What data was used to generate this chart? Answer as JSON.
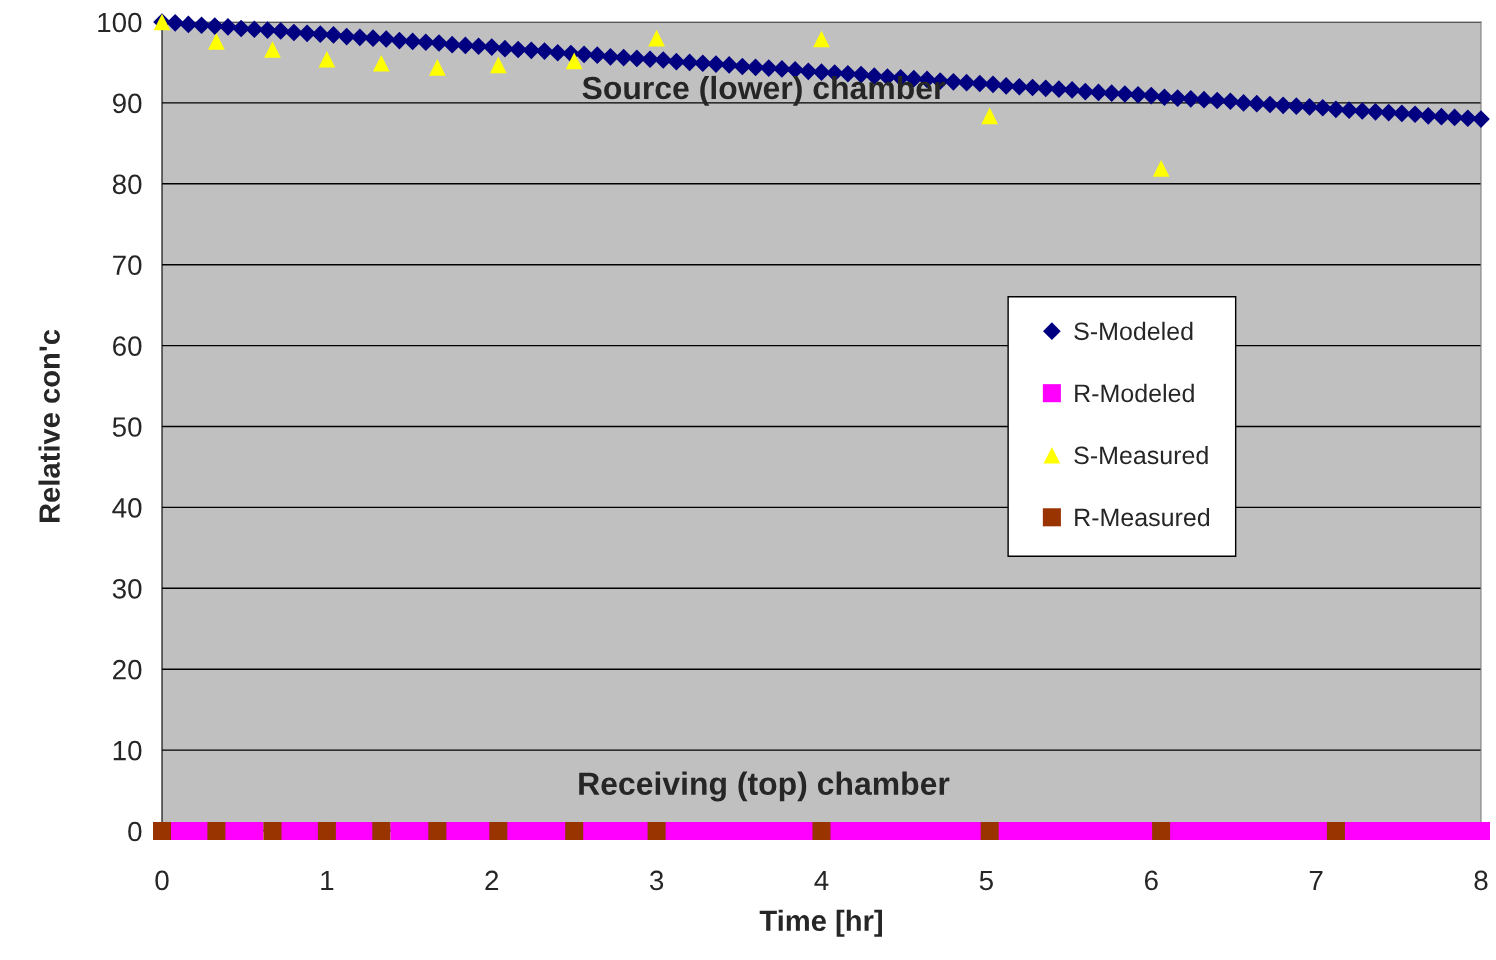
{
  "chart_data": {
    "type": "scatter",
    "xlabel": "Time [hr]",
    "ylabel": "Relative con'c",
    "xlim": [
      0,
      8
    ],
    "xticks": [
      0,
      1,
      2,
      3,
      4,
      5,
      6,
      7,
      8
    ],
    "ylim": [
      0,
      100
    ],
    "yticks": [
      0,
      10,
      20,
      30,
      40,
      50,
      60,
      70,
      80,
      90,
      100
    ],
    "grid": "y",
    "legend": "right",
    "annotations": [
      "Source (lower) chamber",
      "Receiving (top) chamber"
    ],
    "series": [
      {
        "name": "S-Modeled",
        "color": "#000080",
        "marker": "diamond",
        "x": [
          0,
          0.08,
          0.16,
          0.24,
          0.32,
          0.4,
          0.48,
          0.56,
          0.64,
          0.72,
          0.8,
          0.88,
          0.96,
          1.04,
          1.12,
          1.2,
          1.28,
          1.36,
          1.44,
          1.52,
          1.6,
          1.68,
          1.76,
          1.84,
          1.92,
          2.0,
          2.08,
          2.16,
          2.24,
          2.32,
          2.4,
          2.48,
          2.56,
          2.64,
          2.72,
          2.8,
          2.88,
          2.96,
          3.04,
          3.12,
          3.2,
          3.28,
          3.36,
          3.44,
          3.52,
          3.6,
          3.68,
          3.76,
          3.84,
          3.92,
          4.0,
          4.08,
          4.16,
          4.24,
          4.32,
          4.4,
          4.48,
          4.56,
          4.64,
          4.72,
          4.8,
          4.88,
          4.96,
          5.04,
          5.12,
          5.2,
          5.28,
          5.36,
          5.44,
          5.52,
          5.6,
          5.68,
          5.76,
          5.84,
          5.92,
          6.0,
          6.08,
          6.16,
          6.24,
          6.32,
          6.4,
          6.48,
          6.56,
          6.64,
          6.72,
          6.8,
          6.88,
          6.96,
          7.04,
          7.12,
          7.2,
          7.28,
          7.36,
          7.44,
          7.52,
          7.6,
          7.68,
          7.76,
          7.84,
          7.92,
          8.0
        ],
        "values": [
          100,
          99.9,
          99.7,
          99.6,
          99.5,
          99.4,
          99.2,
          99.1,
          99.0,
          98.9,
          98.7,
          98.6,
          98.5,
          98.4,
          98.2,
          98.1,
          98.0,
          97.9,
          97.7,
          97.6,
          97.5,
          97.4,
          97.2,
          97.1,
          97.0,
          96.9,
          96.7,
          96.6,
          96.5,
          96.4,
          96.2,
          96.1,
          96.0,
          95.9,
          95.7,
          95.6,
          95.5,
          95.4,
          95.3,
          95.1,
          95.0,
          94.9,
          94.8,
          94.7,
          94.5,
          94.4,
          94.3,
          94.2,
          94.1,
          93.9,
          93.8,
          93.7,
          93.6,
          93.5,
          93.3,
          93.2,
          93.1,
          93.0,
          92.9,
          92.7,
          92.6,
          92.5,
          92.4,
          92.3,
          92.1,
          92.0,
          91.9,
          91.8,
          91.7,
          91.6,
          91.4,
          91.3,
          91.2,
          91.1,
          91.0,
          90.9,
          90.7,
          90.6,
          90.5,
          90.4,
          90.3,
          90.2,
          90.0,
          89.9,
          89.8,
          89.7,
          89.6,
          89.5,
          89.4,
          89.2,
          89.1,
          89.0,
          88.9,
          88.8,
          88.7,
          88.6,
          88.4,
          88.3,
          88.2,
          88.1,
          88.0
        ]
      },
      {
        "name": "R-Modeled",
        "color": "#ff00ff",
        "marker": "square",
        "x": [
          0.08,
          0.16,
          0.24,
          0.32,
          0.4,
          0.48,
          0.56,
          0.64,
          0.72,
          0.8,
          0.88,
          0.96,
          1.04,
          1.12,
          1.2,
          1.28,
          1.36,
          1.44,
          1.52,
          1.6,
          1.68,
          1.76,
          1.84,
          1.92,
          2.0,
          2.08,
          2.16,
          2.24,
          2.32,
          2.4,
          2.48,
          2.56,
          2.64,
          2.72,
          2.8,
          2.88,
          2.96,
          3.04,
          3.12,
          3.2,
          3.28,
          3.36,
          3.44,
          3.52,
          3.6,
          3.68,
          3.76,
          3.84,
          3.92,
          4.0,
          4.08,
          4.16,
          4.24,
          4.32,
          4.4,
          4.48,
          4.56,
          4.64,
          4.72,
          4.8,
          4.88,
          4.96,
          5.04,
          5.12,
          5.2,
          5.28,
          5.36,
          5.44,
          5.52,
          5.6,
          5.68,
          5.76,
          5.84,
          5.92,
          6.0,
          6.08,
          6.16,
          6.24,
          6.32,
          6.4,
          6.48,
          6.56,
          6.64,
          6.72,
          6.8,
          6.88,
          6.96,
          7.04,
          7.12,
          7.2,
          7.28,
          7.36,
          7.44,
          7.52,
          7.6,
          7.68,
          7.76,
          7.84,
          7.92,
          8.0
        ],
        "values": [
          0,
          0,
          0,
          null,
          0,
          0,
          0,
          null,
          0,
          0,
          0,
          0,
          0,
          0,
          0,
          0,
          null,
          0,
          0,
          0,
          null,
          0,
          0,
          0,
          0,
          0,
          0,
          0,
          0,
          0,
          null,
          0,
          0,
          0,
          0,
          0,
          0,
          0,
          0,
          0,
          0,
          0,
          0,
          0,
          0,
          0,
          0,
          0,
          0,
          null,
          0,
          0,
          0,
          0,
          0,
          0,
          0,
          0,
          0,
          0,
          0,
          0,
          null,
          0,
          0,
          0,
          0,
          0,
          0,
          0,
          0,
          0,
          0,
          0,
          0,
          null,
          0,
          0,
          0,
          0,
          0,
          0,
          0,
          0,
          0,
          0,
          0,
          0,
          null,
          0,
          0,
          0,
          0,
          0,
          0,
          0,
          0,
          0,
          0,
          0
        ]
      },
      {
        "name": "S-Measured",
        "color": "#ffff00",
        "marker": "triangle",
        "x": [
          0,
          0.33,
          0.67,
          1.0,
          1.33,
          1.67,
          2.04,
          2.5,
          3.0,
          4.0,
          5.02,
          6.06
        ],
        "values": [
          100,
          97.6,
          96.6,
          95.4,
          94.9,
          94.4,
          94.7,
          95.2,
          98.0,
          97.9,
          88.4,
          81.9
        ]
      },
      {
        "name": "R-Measured",
        "color": "#993300",
        "marker": "square",
        "x": [
          0,
          0.33,
          0.67,
          1.0,
          1.33,
          1.67,
          2.04,
          2.5,
          3.0,
          4.0,
          5.02,
          6.06,
          7.12
        ],
        "values": [
          0,
          0,
          0,
          0,
          0,
          0,
          0,
          0,
          0,
          0,
          0,
          0,
          0
        ]
      }
    ]
  }
}
